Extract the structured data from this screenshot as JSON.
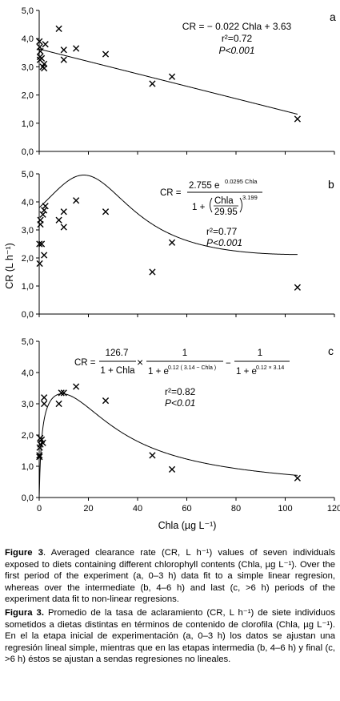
{
  "chart_data": [
    {
      "type": "scatter",
      "panel_letter": "a",
      "xlim": [
        0,
        120
      ],
      "ylim": [
        0,
        5
      ],
      "xticks": [],
      "show_xtick_labels": false,
      "yticks": [
        0,
        1,
        2,
        3,
        4,
        5
      ],
      "ytick_labels": [
        "0,0",
        "1,0",
        "2,0",
        "3,0",
        "4,0",
        "5,0"
      ],
      "points": [
        [
          0.1,
          3.9
        ],
        [
          0.2,
          3.7
        ],
        [
          0.3,
          3.35
        ],
        [
          0.3,
          3.25
        ],
        [
          0.5,
          3.55
        ],
        [
          1,
          3.3
        ],
        [
          1.5,
          3.0
        ],
        [
          2,
          3.1
        ],
        [
          2.5,
          3.8
        ],
        [
          2,
          2.95
        ],
        [
          8,
          4.35
        ],
        [
          10,
          3.6
        ],
        [
          10,
          3.25
        ],
        [
          15,
          3.65
        ],
        [
          27,
          3.45
        ],
        [
          46,
          2.4
        ],
        [
          54,
          2.65
        ],
        [
          105,
          1.15
        ]
      ],
      "fit": {
        "kind": "linear",
        "slope": -0.022,
        "intercept": 3.63,
        "x_range": [
          0,
          105
        ]
      },
      "annotation": {
        "equation": "CR = − 0.022 Chla + 3.63",
        "r2": "r²=0.72",
        "p": "P<0.001"
      }
    },
    {
      "type": "scatter",
      "panel_letter": "b",
      "xlim": [
        0,
        120
      ],
      "ylim": [
        0,
        5
      ],
      "xticks": [],
      "show_xtick_labels": false,
      "yticks": [
        0,
        1,
        2,
        3,
        4,
        5
      ],
      "ytick_labels": [
        "0,0",
        "1,0",
        "2,0",
        "3,0",
        "4,0",
        "5,0"
      ],
      "points": [
        [
          0.1,
          2.5
        ],
        [
          0.2,
          1.8
        ],
        [
          0.5,
          3.35
        ],
        [
          0.5,
          3.2
        ],
        [
          1,
          2.5
        ],
        [
          1.5,
          3.55
        ],
        [
          2,
          3.7
        ],
        [
          2.5,
          3.85
        ],
        [
          2,
          2.1
        ],
        [
          8,
          3.35
        ],
        [
          10,
          3.65
        ],
        [
          10,
          3.1
        ],
        [
          15,
          4.05
        ],
        [
          27,
          3.65
        ],
        [
          46,
          1.5
        ],
        [
          54,
          2.55
        ],
        [
          105,
          0.95
        ]
      ],
      "fit": {
        "kind": "gaussian_sigmoid",
        "amp": 2.755,
        "k": 0.0295,
        "half": 29.95,
        "exp": 3.199,
        "base": 1.1,
        "x_range": [
          0,
          105
        ]
      },
      "annotation": {
        "eq_lhs": "CR =",
        "eq_num": "2.755 e",
        "eq_num_sup": "0.0295 Chla",
        "eq_den_left": "1 +",
        "eq_den_frac_num": "Chla",
        "eq_den_frac_den": "29.95",
        "eq_den_sup": "3.199",
        "r2": "r²=0.77",
        "p": "P<0.001"
      }
    },
    {
      "type": "scatter",
      "panel_letter": "c",
      "xlim": [
        0,
        120
      ],
      "ylim": [
        0,
        5
      ],
      "xticks": [
        0,
        20,
        40,
        60,
        80,
        100,
        120
      ],
      "show_xtick_labels": true,
      "yticks": [
        0,
        1,
        2,
        3,
        4,
        5
      ],
      "ytick_labels": [
        "0,0",
        "1,0",
        "2,0",
        "3,0",
        "4,0",
        "5,0"
      ],
      "xlabel": "Chla (µg L⁻¹)",
      "points": [
        [
          0.1,
          1.3
        ],
        [
          0.1,
          1.35
        ],
        [
          0.2,
          1.6
        ],
        [
          0.4,
          1.9
        ],
        [
          0.5,
          1.7
        ],
        [
          1,
          1.85
        ],
        [
          1.5,
          1.75
        ],
        [
          2,
          3.2
        ],
        [
          2,
          3.0
        ],
        [
          8,
          3.0
        ],
        [
          9,
          3.35
        ],
        [
          10,
          3.35
        ],
        [
          15,
          3.55
        ],
        [
          27,
          3.1
        ],
        [
          46,
          1.35
        ],
        [
          54,
          0.9
        ],
        [
          105,
          0.62
        ]
      ],
      "fit": {
        "kind": "inverse_logistic",
        "x_range": [
          0,
          105
        ]
      },
      "annotation": {
        "eq_lhs": "CR =",
        "t1_num": "126.7",
        "t1_den": "1 + Chla",
        "times": "×",
        "t2_num": "1",
        "t2_den_base": "1 + e",
        "t2_den_sup": "0.12 ( 3.14 − Chla )",
        "minus": "−",
        "t3_num": "1",
        "t3_den_base": "1 + e",
        "t3_den_sup": "0.12 × 3.14",
        "r2": "r²=0.82",
        "p": "P<0.01"
      }
    }
  ],
  "y_axis_label": "CR (L h⁻¹)",
  "caption": {
    "en_fig": "Figure 3",
    "en_text": ". Averaged clearance rate (CR, L h⁻¹) values of seven individuals exposed to diets containing different chlorophyll contents (Chla, µg L⁻¹). Over the first period of the experiment (a, 0–3 h) data fit to a simple linear regresion, whereas over the intermediate (b, 4–6 h) and last (c, >6 h) periods of the experiment data fit to non-linear regresions.",
    "es_fig": "Figura 3.",
    "es_text": " Promedio de la tasa de aclaramiento (CR, L h⁻¹) de siete individuos sometidos a dietas distintas en términos de contenido de clorofila (Chla, µg L⁻¹). En el la etapa inicial de experimentación (a, 0–3 h) los datos se ajustan una regresión lineal simple, mientras que en las etapas intermedia (b, 4–6 h) y final (c, >6 h) éstos se ajustan a sendas regresiones no lineales."
  }
}
